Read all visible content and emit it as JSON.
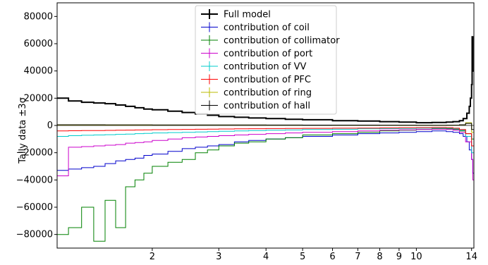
{
  "chart_data": {
    "type": "line",
    "title": "",
    "xlabel": "",
    "ylabel": "Tally data ±3σ",
    "xscale": "log",
    "xlim": [
      1.12,
      14.2
    ],
    "ylim": [
      -90000,
      90000
    ],
    "grid": false,
    "legend_position": "top-center",
    "x_ticks": [
      {
        "value": 2,
        "label": "2"
      },
      {
        "value": 3,
        "label": "3"
      },
      {
        "value": 4,
        "label": "4"
      },
      {
        "value": 5,
        "label": "5"
      },
      {
        "value": 6,
        "label": "6"
      },
      {
        "value": 7,
        "label": "7"
      },
      {
        "value": 8,
        "label": "8"
      },
      {
        "value": 9,
        "label": "9"
      },
      {
        "value": 10,
        "label": "10"
      },
      {
        "value": 14,
        "label": "14"
      }
    ],
    "y_ticks": [
      {
        "value": 80000,
        "label": "80000"
      },
      {
        "value": 60000,
        "label": "60000"
      },
      {
        "value": 40000,
        "label": "40000"
      },
      {
        "value": 20000,
        "label": "20000"
      },
      {
        "value": 0,
        "label": "0"
      },
      {
        "value": -20000,
        "label": "−20000"
      },
      {
        "value": -40000,
        "label": "−40000"
      },
      {
        "value": -60000,
        "label": "−60000"
      },
      {
        "value": -80000,
        "label": "−80000"
      }
    ],
    "series": [
      {
        "name": "Full model",
        "color": "#000000",
        "width": 2,
        "x": [
          1.12,
          1.2,
          1.3,
          1.4,
          1.5,
          1.6,
          1.7,
          1.8,
          1.9,
          2.0,
          2.2,
          2.4,
          2.6,
          2.8,
          3.0,
          3.3,
          3.6,
          4.0,
          4.5,
          5.0,
          6.0,
          7.0,
          8.0,
          9.0,
          10.0,
          11.0,
          12.0,
          12.5,
          13.0,
          13.3,
          13.6,
          13.8,
          13.9,
          14.0,
          14.05,
          14.1
        ],
        "y": [
          20000,
          18000,
          17000,
          16500,
          16000,
          15000,
          14000,
          13000,
          12000,
          11500,
          10500,
          9500,
          8500,
          7500,
          6500,
          6000,
          5500,
          5000,
          4500,
          4200,
          3500,
          3200,
          2800,
          2500,
          2000,
          2200,
          2500,
          2800,
          3500,
          5000,
          9000,
          14000,
          20000,
          30000,
          65000,
          40000
        ]
      },
      {
        "name": "contribution of coil",
        "color": "#0000cc",
        "width": 1,
        "x": [
          1.12,
          1.2,
          1.3,
          1.4,
          1.5,
          1.6,
          1.7,
          1.8,
          1.9,
          2.0,
          2.2,
          2.4,
          2.6,
          2.8,
          3.0,
          3.3,
          3.6,
          4.0,
          4.5,
          5.0,
          6.0,
          7.0,
          8.0,
          9.0,
          10.0,
          11.0,
          12.0,
          12.5,
          13.0,
          13.3,
          13.6,
          13.8,
          14.0,
          14.1
        ],
        "y": [
          -33000,
          -32000,
          -31000,
          -30000,
          -28000,
          -26000,
          -25000,
          -24000,
          -22000,
          -21000,
          -19000,
          -17000,
          -16000,
          -15000,
          -14000,
          -12000,
          -11000,
          -10000,
          -9000,
          -8000,
          -7000,
          -6000,
          -5500,
          -5000,
          -4500,
          -4000,
          -4500,
          -5000,
          -6000,
          -8000,
          -12000,
          -18000,
          -25000,
          -35000
        ]
      },
      {
        "name": "contribution of collimator",
        "color": "#008000",
        "width": 1,
        "x": [
          1.12,
          1.2,
          1.3,
          1.4,
          1.5,
          1.6,
          1.7,
          1.8,
          1.9,
          2.0,
          2.2,
          2.4,
          2.6,
          2.8,
          3.0,
          3.3,
          3.6,
          4.0,
          4.5,
          5.0,
          6.0,
          7.0,
          8.0,
          9.0,
          10.0,
          11.0,
          12.0,
          12.5,
          13.0,
          13.5,
          14.0
        ],
        "y": [
          -80000,
          -75000,
          -60000,
          -85000,
          -55000,
          -75000,
          -45000,
          -40000,
          -35000,
          -30000,
          -27000,
          -25000,
          -20000,
          -18000,
          -15000,
          -13000,
          -12000,
          -10000,
          -9000,
          -7000,
          -6000,
          -5000,
          -4000,
          -3500,
          -3000,
          -2500,
          -2500,
          -3000,
          -4000,
          -6000,
          -10000
        ]
      },
      {
        "name": "contribution of port",
        "color": "#cc00cc",
        "width": 1,
        "x": [
          1.12,
          1.2,
          1.3,
          1.4,
          1.5,
          1.6,
          1.7,
          1.8,
          1.9,
          2.0,
          2.2,
          2.4,
          2.6,
          2.8,
          3.0,
          3.3,
          3.6,
          4.0,
          4.5,
          5.0,
          6.0,
          7.0,
          8.0,
          9.0,
          10.0,
          11.0,
          12.0,
          12.5,
          13.0,
          13.5,
          14.0,
          14.1
        ],
        "y": [
          -37000,
          -16000,
          -15500,
          -15000,
          -14500,
          -14000,
          -13000,
          -12500,
          -12000,
          -11000,
          -10000,
          -9000,
          -8500,
          -8000,
          -7500,
          -7000,
          -6500,
          -6000,
          -5500,
          -5000,
          -4500,
          -4000,
          -3500,
          -3200,
          -3000,
          -2800,
          -3000,
          -3500,
          -5000,
          -12000,
          -25000,
          -40000
        ]
      },
      {
        "name": "contribution of VV",
        "color": "#00cccc",
        "width": 1,
        "x": [
          1.12,
          1.2,
          1.3,
          1.4,
          1.5,
          1.6,
          1.7,
          1.8,
          1.9,
          2.0,
          2.2,
          2.4,
          2.6,
          2.8,
          3.0,
          3.3,
          3.6,
          4.0,
          4.5,
          5.0,
          6.0,
          7.0,
          8.0,
          9.0,
          10.0,
          11.0,
          12.0,
          12.5,
          13.0,
          13.5,
          14.0
        ],
        "y": [
          -8000,
          -7500,
          -7200,
          -7000,
          -6800,
          -6500,
          -6300,
          -6000,
          -5800,
          -5500,
          -5200,
          -5000,
          -4800,
          -4500,
          -4300,
          -4000,
          -3800,
          -3500,
          -3300,
          -3000,
          -2800,
          -2500,
          -2300,
          -2200,
          -2000,
          -1900,
          -2000,
          -2500,
          -3500,
          -8000,
          -20000
        ]
      },
      {
        "name": "contribution of PFC",
        "color": "#ff0000",
        "width": 1,
        "x": [
          1.12,
          1.2,
          1.3,
          1.4,
          1.5,
          1.6,
          1.7,
          1.8,
          1.9,
          2.0,
          2.2,
          2.4,
          2.6,
          2.8,
          3.0,
          3.3,
          3.6,
          4.0,
          4.5,
          5.0,
          6.0,
          7.0,
          8.0,
          9.0,
          10.0,
          11.0,
          12.0,
          12.5,
          13.0,
          13.5,
          14.0
        ],
        "y": [
          -4000,
          -3900,
          -3800,
          -3700,
          -3600,
          -3500,
          -3400,
          -3300,
          -3200,
          -3100,
          -3000,
          -2900,
          -2800,
          -2700,
          -2600,
          -2500,
          -2400,
          -2300,
          -2200,
          -2100,
          -2000,
          -1900,
          -1800,
          -1700,
          -1600,
          -1500,
          -1600,
          -2000,
          -3000,
          -6000,
          -15000
        ]
      },
      {
        "name": "contribution of ring",
        "color": "#bbbb00",
        "width": 1,
        "x": [
          1.12,
          1.5,
          2.0,
          3.0,
          4.0,
          5.0,
          6.0,
          7.0,
          8.0,
          9.0,
          10.0,
          11.0,
          12.0,
          13.0,
          13.5,
          14.0
        ],
        "y": [
          300,
          280,
          260,
          240,
          220,
          200,
          180,
          160,
          150,
          140,
          130,
          120,
          150,
          400,
          2000,
          -5000
        ]
      },
      {
        "name": "contribution of hall",
        "color": "#000000",
        "width": 1,
        "x": [
          1.12,
          1.5,
          2.0,
          3.0,
          4.0,
          5.0,
          6.0,
          7.0,
          8.0,
          9.0,
          10.0,
          11.0,
          12.0,
          13.0,
          13.5,
          14.0
        ],
        "y": [
          500,
          450,
          400,
          350,
          300,
          280,
          260,
          240,
          220,
          200,
          180,
          160,
          200,
          500,
          1500,
          -3000
        ]
      }
    ]
  }
}
